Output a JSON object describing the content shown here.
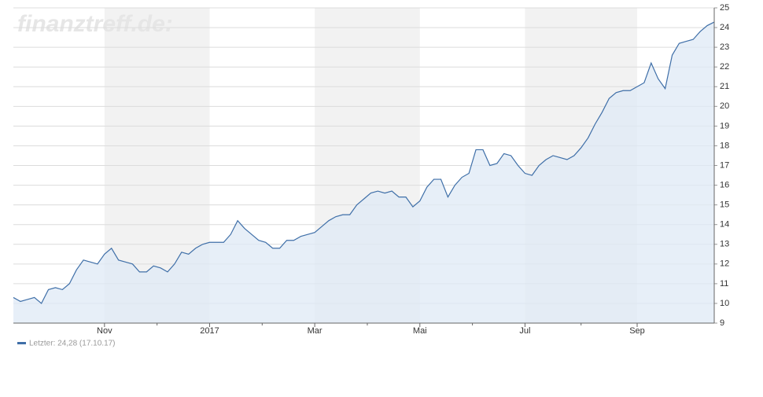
{
  "chart_data": {
    "type": "area",
    "watermark": "finanztreff.de:",
    "categories": [
      null,
      null,
      null,
      null,
      null,
      null,
      null,
      null,
      null,
      null,
      null,
      null,
      null,
      "Nov",
      null,
      null,
      null,
      null,
      null,
      null,
      null,
      null,
      null,
      null,
      null,
      null,
      null,
      null,
      "2017",
      null,
      null,
      null,
      null,
      null,
      null,
      null,
      null,
      null,
      null,
      null,
      null,
      null,
      null,
      "Mar",
      null,
      null,
      null,
      null,
      null,
      null,
      null,
      null,
      null,
      null,
      null,
      null,
      null,
      null,
      "Mai",
      null,
      null,
      null,
      null,
      null,
      null,
      null,
      null,
      null,
      null,
      null,
      null,
      null,
      null,
      "Jul",
      null,
      null,
      null,
      null,
      null,
      null,
      null,
      null,
      null,
      null,
      null,
      null,
      null,
      null,
      null,
      "Sep",
      null,
      null,
      null,
      null,
      null,
      null,
      null,
      null,
      null,
      null,
      null
    ],
    "series": [
      {
        "name": "Letzter: 24,28 (17.10.17)",
        "color": "#3f6fa8",
        "fill": "#dfe9f5",
        "values": [
          10.3,
          10.1,
          10.2,
          10.3,
          10.0,
          10.7,
          10.8,
          10.7,
          11.0,
          11.7,
          12.2,
          12.1,
          12.0,
          12.5,
          12.8,
          12.2,
          12.1,
          12.0,
          11.6,
          11.6,
          11.9,
          11.8,
          11.6,
          12.0,
          12.6,
          12.5,
          12.8,
          13.0,
          13.1,
          13.1,
          13.1,
          13.5,
          14.2,
          13.8,
          13.5,
          13.2,
          13.1,
          12.8,
          12.8,
          13.2,
          13.2,
          13.4,
          13.5,
          13.6,
          13.9,
          14.2,
          14.4,
          14.5,
          14.5,
          15.0,
          15.3,
          15.6,
          15.7,
          15.6,
          15.7,
          15.4,
          15.4,
          14.9,
          15.2,
          15.9,
          16.3,
          16.3,
          15.4,
          16.0,
          16.4,
          16.6,
          17.8,
          17.8,
          17.0,
          17.1,
          17.6,
          17.5,
          17.0,
          16.6,
          16.5,
          17.0,
          17.3,
          17.5,
          17.4,
          17.3,
          17.5,
          17.9,
          18.4,
          19.1,
          19.7,
          20.4,
          20.7,
          20.8,
          20.8,
          21.0,
          21.2,
          22.2,
          21.4,
          20.9,
          22.6,
          23.2,
          23.3,
          23.4,
          23.8,
          24.1,
          24.28
        ]
      }
    ],
    "ylim": [
      9,
      25
    ],
    "yticks": [
      9,
      10,
      11,
      12,
      13,
      14,
      15,
      16,
      17,
      18,
      19,
      20,
      21,
      22,
      23,
      24,
      25
    ],
    "grid": true,
    "legend": "bottom-left",
    "band_color": "#f2f2f2"
  }
}
